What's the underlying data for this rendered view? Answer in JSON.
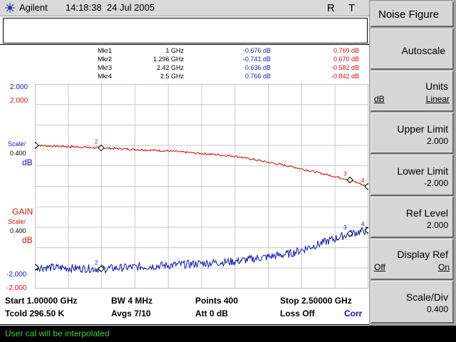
{
  "header": {
    "brand": "Agilent",
    "time": "14:18:38",
    "date": "24 Jul 2005",
    "flag1": "R",
    "flag2": "T"
  },
  "markers": [
    {
      "name": "Mkr1",
      "freq": "1 GHz",
      "trace1": "-0.676 dB",
      "trace2": "0.769 dB"
    },
    {
      "name": "Mkr2",
      "freq": "1.296 GHz",
      "trace1": "-0.741 dB",
      "trace2": "0.670 dB"
    },
    {
      "name": "Mkr3",
      "freq": "2.42 GHz",
      "trace1": "0.636 dB",
      "trace2": "-0.582 dB"
    },
    {
      "name": "Mkr4",
      "freq": "2.5 GHz",
      "trace1": "0.766 dB",
      "trace2": "-0.842 dB"
    }
  ],
  "left_labels": {
    "upper_top_blue": "2.000",
    "upper_top_red": "2.000",
    "scale1": "Scale/",
    "scale1_value": "0.400",
    "scale1_unit": "dB",
    "gain": "GAIN",
    "scale2": "Scale/",
    "scale2_value": "0.400",
    "scale2_unit": "dB",
    "lower_bottom_blue": "-2.000",
    "lower_bottom_red": "-2.000"
  },
  "info": {
    "start": "Start 1.00000 GHz",
    "bw": "BW 4 MHz",
    "points": "Points 400",
    "stop": "Stop 2.50000 GHz",
    "tcold": "Tcold 296.50 K",
    "avgs": "Avgs 7/10",
    "att": "Att 0 dB",
    "loss": "Loss Off",
    "corr": "Corr"
  },
  "status": "User cal will be interpolated",
  "softkeys": {
    "title": "Noise Figure",
    "autoscale": "Autoscale",
    "units": {
      "label": "Units",
      "left": "dB",
      "right": "Linear"
    },
    "upper_limit": {
      "label": "Upper Limit",
      "value": "2.000"
    },
    "lower_limit": {
      "label": "Lower Limit",
      "value": "-2.000"
    },
    "ref_level": {
      "label": "Ref Level",
      "value": "2.000"
    },
    "display_ref": {
      "label": "Display Ref",
      "left": "Off",
      "right": "On"
    },
    "scale_div": {
      "label": "Scale/Div",
      "value": "0.400"
    }
  },
  "colors": {
    "trace_red": "#c81414",
    "trace_blue": "#1414b4",
    "grid": "#c8c8c8",
    "status_text": "#3fcf3f"
  },
  "chart_data": {
    "type": "line",
    "x_range_ghz": [
      1.0,
      2.5
    ],
    "y_range_db": [
      -2.0,
      2.0
    ],
    "divisions": {
      "x": 10,
      "y": 10
    },
    "grid": true,
    "series": [
      {
        "color": "red",
        "marker_x_ghz": [
          1.0,
          1.296,
          2.42,
          2.5
        ],
        "marker_y_db": [
          0.769,
          0.67,
          -0.582,
          -0.842
        ]
      },
      {
        "color": "blue",
        "marker_x_ghz": [
          1.0,
          1.296,
          2.42,
          2.5
        ],
        "marker_y_db": [
          -0.676,
          -0.741,
          0.636,
          0.766
        ]
      }
    ],
    "marker_labels": [
      "1",
      "2",
      "3",
      "4"
    ]
  }
}
